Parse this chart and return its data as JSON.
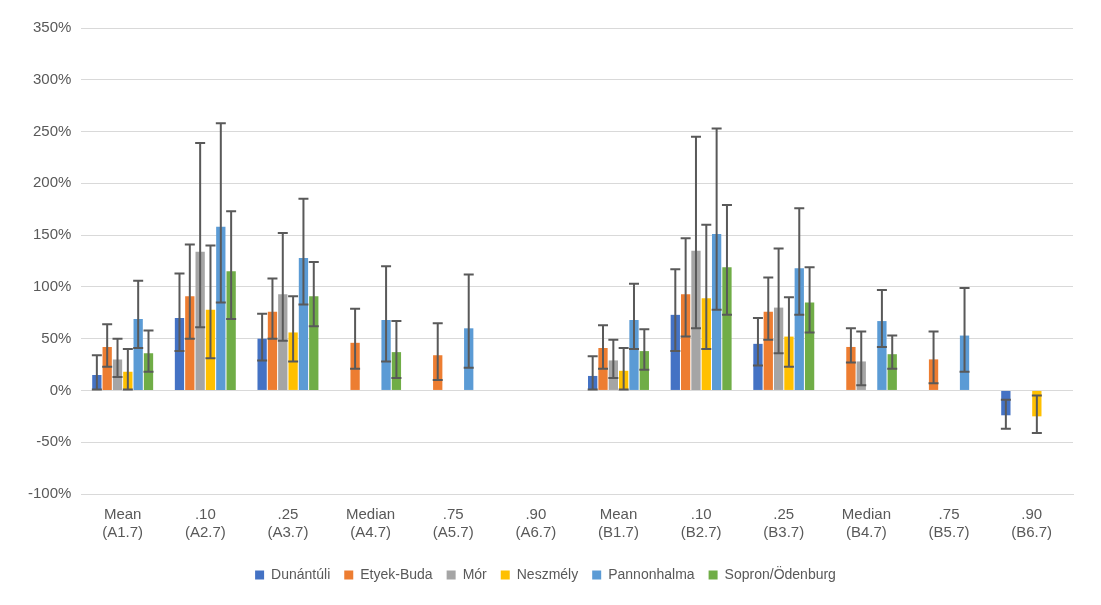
{
  "chart_data": {
    "type": "bar",
    "categories": [
      "Mean (A1.7)",
      ".10 (A2.7)",
      ".25 (A3.7)",
      "Median (A4.7)",
      ".75 (A5.7)",
      ".90 (A6.7)",
      "Mean (B1.7)",
      ".10 (B2.7)",
      ".25 (B3.7)",
      "Median (B4.7)",
      ".75 (B5.7)",
      ".90 (B6.7)"
    ],
    "series": [
      {
        "name": "Dunántúli",
        "color": "#4472c4",
        "values": [
          15,
          70,
          50,
          null,
          null,
          null,
          14,
          73,
          45,
          null,
          null,
          -24
        ],
        "errors": [
          [
            1,
            34
          ],
          [
            38,
            113
          ],
          [
            29,
            74
          ],
          null,
          null,
          null,
          [
            1,
            33
          ],
          [
            38,
            117
          ],
          [
            24,
            70
          ],
          null,
          null,
          [
            -37,
            -9
          ]
        ]
      },
      {
        "name": "Etyek-Buda",
        "color": "#ed7d31",
        "values": [
          42,
          91,
          76,
          46,
          34,
          null,
          41,
          93,
          76,
          42,
          30,
          null
        ],
        "errors": [
          [
            23,
            64
          ],
          [
            50,
            141
          ],
          [
            50,
            108
          ],
          [
            21,
            79
          ],
          [
            10,
            65
          ],
          null,
          [
            21,
            63
          ],
          [
            52,
            147
          ],
          [
            49,
            109
          ],
          [
            27,
            60
          ],
          [
            7,
            57
          ],
          null
        ]
      },
      {
        "name": "Mór",
        "color": "#a5a5a5",
        "values": [
          30,
          134,
          93,
          null,
          null,
          null,
          29,
          135,
          80,
          28,
          null,
          null
        ],
        "errors": [
          [
            13,
            50
          ],
          [
            61,
            239
          ],
          [
            48,
            152
          ],
          null,
          null,
          null,
          [
            12,
            49
          ],
          [
            60,
            245
          ],
          [
            36,
            137
          ],
          [
            5,
            57
          ],
          null,
          null
        ]
      },
      {
        "name": "Neszmély",
        "color": "#ffc000",
        "values": [
          18,
          78,
          56,
          null,
          null,
          null,
          19,
          89,
          52,
          null,
          null,
          -25
        ],
        "errors": [
          [
            1,
            40
          ],
          [
            31,
            140
          ],
          [
            28,
            91
          ],
          null,
          null,
          null,
          [
            1,
            41
          ],
          [
            40,
            160
          ],
          [
            23,
            90
          ],
          null,
          null,
          [
            -41,
            -5
          ]
        ]
      },
      {
        "name": "Pannonhalma",
        "color": "#5b9bd5",
        "values": [
          69,
          158,
          128,
          68,
          60,
          null,
          68,
          151,
          118,
          67,
          53,
          null
        ],
        "errors": [
          [
            41,
            106
          ],
          [
            85,
            258
          ],
          [
            83,
            185
          ],
          [
            28,
            120
          ],
          [
            22,
            112
          ],
          null,
          [
            40,
            103
          ],
          [
            78,
            253
          ],
          [
            73,
            176
          ],
          [
            42,
            97
          ],
          [
            18,
            99
          ],
          null
        ]
      },
      {
        "name": "Sopron/Ödenburg",
        "color": "#70ad47",
        "values": [
          36,
          115,
          91,
          37,
          null,
          null,
          38,
          119,
          85,
          35,
          null,
          null
        ],
        "errors": [
          [
            18,
            58
          ],
          [
            69,
            173
          ],
          [
            62,
            124
          ],
          [
            12,
            67
          ],
          null,
          null,
          [
            20,
            59
          ],
          [
            73,
            179
          ],
          [
            56,
            119
          ],
          [
            21,
            53
          ],
          null,
          null
        ]
      }
    ],
    "ylim": [
      -100,
      350
    ],
    "yticks": [
      {
        "value": -100,
        "label": "-100%"
      },
      {
        "value": -50,
        "label": "-50%"
      },
      {
        "value": 0,
        "label": "0%"
      },
      {
        "value": 50,
        "label": "50%"
      },
      {
        "value": 100,
        "label": "100%"
      },
      {
        "value": 150,
        "label": "150%"
      },
      {
        "value": 200,
        "label": "200%"
      },
      {
        "value": 250,
        "label": "250%"
      },
      {
        "value": 300,
        "label": "300%"
      },
      {
        "value": 350,
        "label": "350%"
      }
    ],
    "grid": "y",
    "legend": "bottom"
  }
}
